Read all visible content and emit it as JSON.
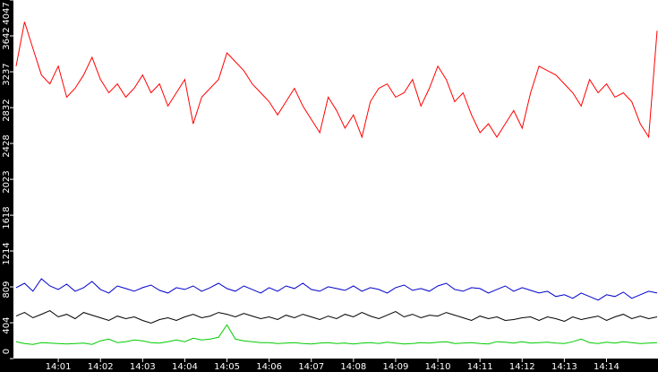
{
  "chart_data": {
    "type": "line",
    "x": [
      0,
      0.2,
      0.4,
      0.6,
      0.8,
      1,
      1.2,
      1.4,
      1.6,
      1.8,
      2,
      2.2,
      2.4,
      2.6,
      2.8,
      3,
      3.2,
      3.4,
      3.6,
      3.8,
      4,
      4.2,
      4.4,
      4.6,
      4.8,
      5,
      5.2,
      5.4,
      5.6,
      5.8,
      6,
      6.2,
      6.4,
      6.6,
      6.8,
      7,
      7.2,
      7.4,
      7.6,
      7.8,
      8,
      8.2,
      8.4,
      8.6,
      8.8,
      9,
      9.2,
      9.4,
      9.6,
      9.8,
      10,
      10.2,
      10.4,
      10.6,
      10.8,
      11,
      11.2,
      11.4,
      11.6,
      11.8,
      12,
      12.2,
      12.4,
      12.6,
      12.8,
      13,
      13.2,
      13.4,
      13.6,
      13.8,
      14,
      14.2,
      14.4,
      14.6,
      14.8,
      15,
      15.2
    ],
    "series": [
      {
        "color": "#ff0000",
        "values": [
          3300,
          3800,
          3500,
          3200,
          3100,
          3300,
          2950,
          3050,
          3200,
          3400,
          3150,
          3000,
          3100,
          2950,
          3050,
          3200,
          3000,
          3100,
          2850,
          3000,
          3150,
          2650,
          2950,
          3050,
          3150,
          3450,
          3350,
          3250,
          3100,
          3000,
          2900,
          2750,
          2900,
          3050,
          2850,
          2700,
          2550,
          2950,
          2800,
          2600,
          2750,
          2500,
          2900,
          3050,
          3100,
          2950,
          3000,
          3150,
          2850,
          3050,
          3300,
          3150,
          2900,
          3000,
          2750,
          2550,
          2650,
          2500,
          2650,
          2800,
          2600,
          3000,
          3300,
          3250,
          3200,
          3100,
          3000,
          2850,
          3150,
          3000,
          3100,
          2950,
          3000,
          2900,
          2650,
          2500,
          3700
        ]
      },
      {
        "color": "#0000cc",
        "values": [
          800,
          850,
          760,
          900,
          820,
          780,
          840,
          760,
          800,
          870,
          780,
          740,
          820,
          790,
          760,
          800,
          830,
          770,
          740,
          800,
          780,
          820,
          760,
          800,
          850,
          790,
          760,
          820,
          780,
          740,
          800,
          760,
          820,
          790,
          850,
          780,
          760,
          810,
          790,
          770,
          820,
          760,
          800,
          780,
          740,
          800,
          830,
          770,
          790,
          760,
          820,
          850,
          780,
          760,
          800,
          790,
          740,
          780,
          820,
          760,
          800,
          770,
          740,
          760,
          700,
          720,
          680,
          740,
          700,
          660,
          720,
          700,
          750,
          680,
          720,
          760,
          740
        ]
      },
      {
        "color": "#000000",
        "values": [
          480,
          520,
          460,
          500,
          540,
          470,
          500,
          450,
          520,
          490,
          460,
          430,
          480,
          450,
          470,
          430,
          400,
          440,
          460,
          430,
          470,
          500,
          460,
          480,
          520,
          500,
          470,
          510,
          480,
          450,
          470,
          440,
          490,
          460,
          500,
          470,
          440,
          480,
          450,
          500,
          470,
          520,
          480,
          450,
          490,
          530,
          470,
          500,
          460,
          490,
          480,
          520,
          490,
          460,
          430,
          480,
          450,
          470,
          430,
          440,
          460,
          470,
          430,
          470,
          450,
          420,
          470,
          440,
          460,
          480,
          430,
          470,
          500,
          450,
          480,
          450,
          470
        ]
      },
      {
        "color": "#00cc00",
        "values": [
          190,
          170,
          160,
          180,
          175,
          170,
          165,
          170,
          175,
          160,
          200,
          220,
          180,
          190,
          210,
          200,
          180,
          175,
          190,
          210,
          190,
          230,
          210,
          220,
          240,
          380,
          220,
          200,
          190,
          180,
          180,
          170,
          175,
          180,
          170,
          165,
          175,
          180,
          170,
          175,
          165,
          175,
          180,
          170,
          185,
          175,
          165,
          170,
          180,
          175,
          185,
          190,
          170,
          175,
          180,
          170,
          165,
          190,
          185,
          175,
          190,
          175,
          180,
          185,
          175,
          170,
          190,
          220,
          180,
          170,
          185,
          175,
          190,
          180,
          170,
          175,
          180
        ]
      }
    ],
    "xlim": [
      0,
      15.2
    ],
    "xticks": [
      {
        "value": 1,
        "label": "14:01"
      },
      {
        "value": 2,
        "label": "14:02"
      },
      {
        "value": 3,
        "label": "14:03"
      },
      {
        "value": 4,
        "label": "14:04"
      },
      {
        "value": 5,
        "label": "14:05"
      },
      {
        "value": 6,
        "label": "14:06"
      },
      {
        "value": 7,
        "label": "14:07"
      },
      {
        "value": 8,
        "label": "14:08"
      },
      {
        "value": 9,
        "label": "14:09"
      },
      {
        "value": 10,
        "label": "14:10"
      },
      {
        "value": 11,
        "label": "14:11"
      },
      {
        "value": 12,
        "label": "14:12"
      },
      {
        "value": 13,
        "label": "14:13"
      },
      {
        "value": 14,
        "label": "14:14"
      }
    ],
    "ylim": [
      0,
      4047
    ],
    "yticks": [
      0,
      404,
      809,
      1214,
      1618,
      2023,
      2428,
      2832,
      3237,
      3642,
      4047
    ]
  }
}
